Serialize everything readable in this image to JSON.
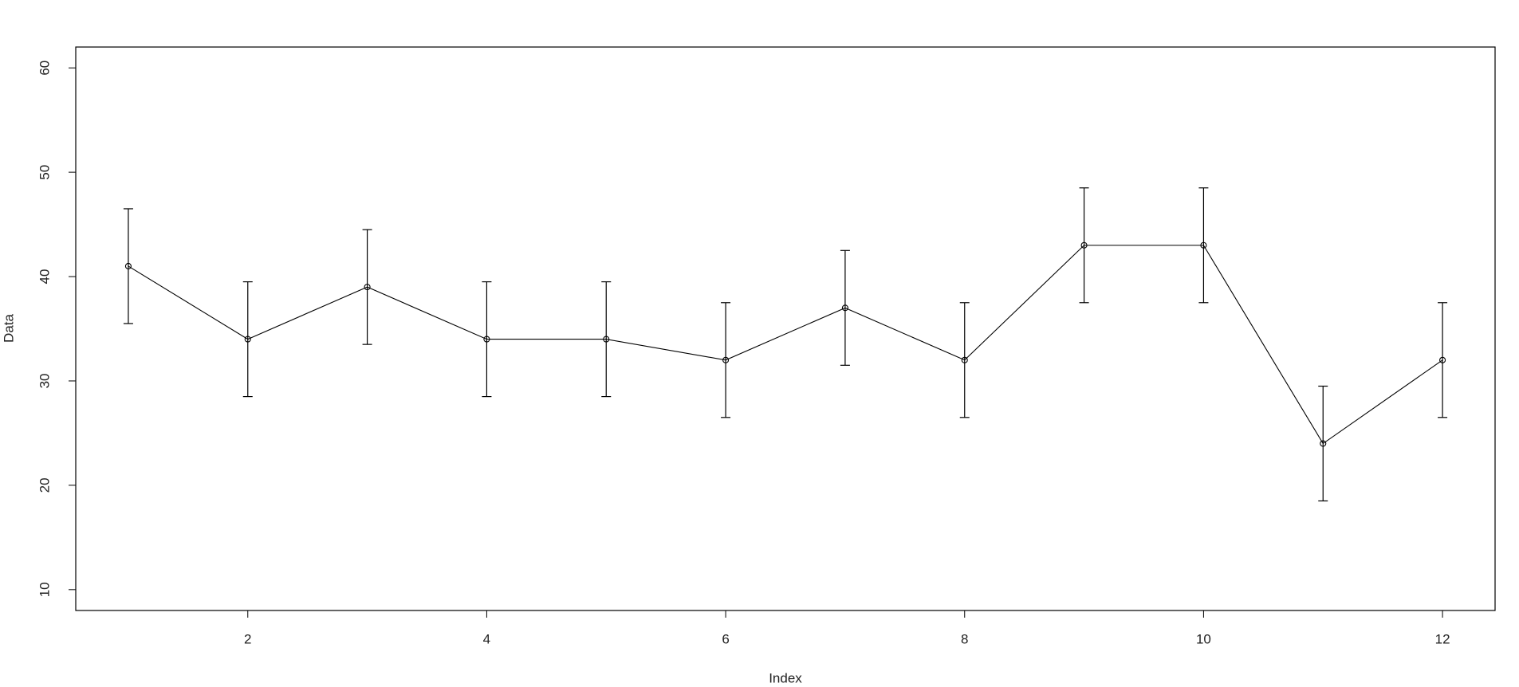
{
  "chart_data": {
    "type": "line",
    "xlabel": "Index",
    "ylabel": "Data",
    "x": [
      1,
      2,
      3,
      4,
      5,
      6,
      7,
      8,
      9,
      10,
      11,
      12
    ],
    "values": [
      41,
      34,
      39,
      34,
      34,
      32,
      37,
      32,
      43,
      43,
      24,
      32
    ],
    "errors": [
      5.5,
      5.5,
      5.5,
      5.5,
      5.5,
      5.5,
      5.5,
      5.5,
      5.5,
      5.5,
      5.5,
      5.5
    ],
    "color": "#000000",
    "xlim": [
      0.56,
      12.44
    ],
    "ylim": [
      8,
      62
    ],
    "xticks": [
      2,
      4,
      6,
      8,
      10,
      12
    ],
    "yticks": [
      10,
      20,
      30,
      40,
      50,
      60
    ]
  }
}
